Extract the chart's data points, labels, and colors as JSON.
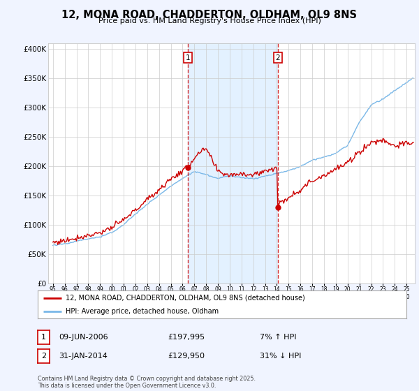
{
  "title": "12, MONA ROAD, CHADDERTON, OLDHAM, OL9 8NS",
  "subtitle": "Price paid vs. HM Land Registry's House Price Index (HPI)",
  "ylim": [
    0,
    410000
  ],
  "yticks": [
    0,
    50000,
    100000,
    150000,
    200000,
    250000,
    300000,
    350000,
    400000
  ],
  "hpi_color": "#7ab8e8",
  "hpi_shade_color": "#ddeeff",
  "price_color": "#cc0000",
  "marker1_x": 2006.44,
  "marker2_x": 2014.08,
  "marker1_price": 197995,
  "marker2_price": 129950,
  "legend_label_red": "12, MONA ROAD, CHADDERTON, OLDHAM, OL9 8NS (detached house)",
  "legend_label_blue": "HPI: Average price, detached house, Oldham",
  "annotation1_date": "09-JUN-2006",
  "annotation1_price": "£197,995",
  "annotation1_hpi": "7% ↑ HPI",
  "annotation2_date": "31-JAN-2014",
  "annotation2_price": "£129,950",
  "annotation2_hpi": "31% ↓ HPI",
  "footer": "Contains HM Land Registry data © Crown copyright and database right 2025.\nThis data is licensed under the Open Government Licence v3.0.",
  "background_color": "#f0f4ff",
  "plot_bg_color": "#ffffff",
  "grid_color": "#cccccc",
  "xlim_left": 1994.6,
  "xlim_right": 2025.7
}
